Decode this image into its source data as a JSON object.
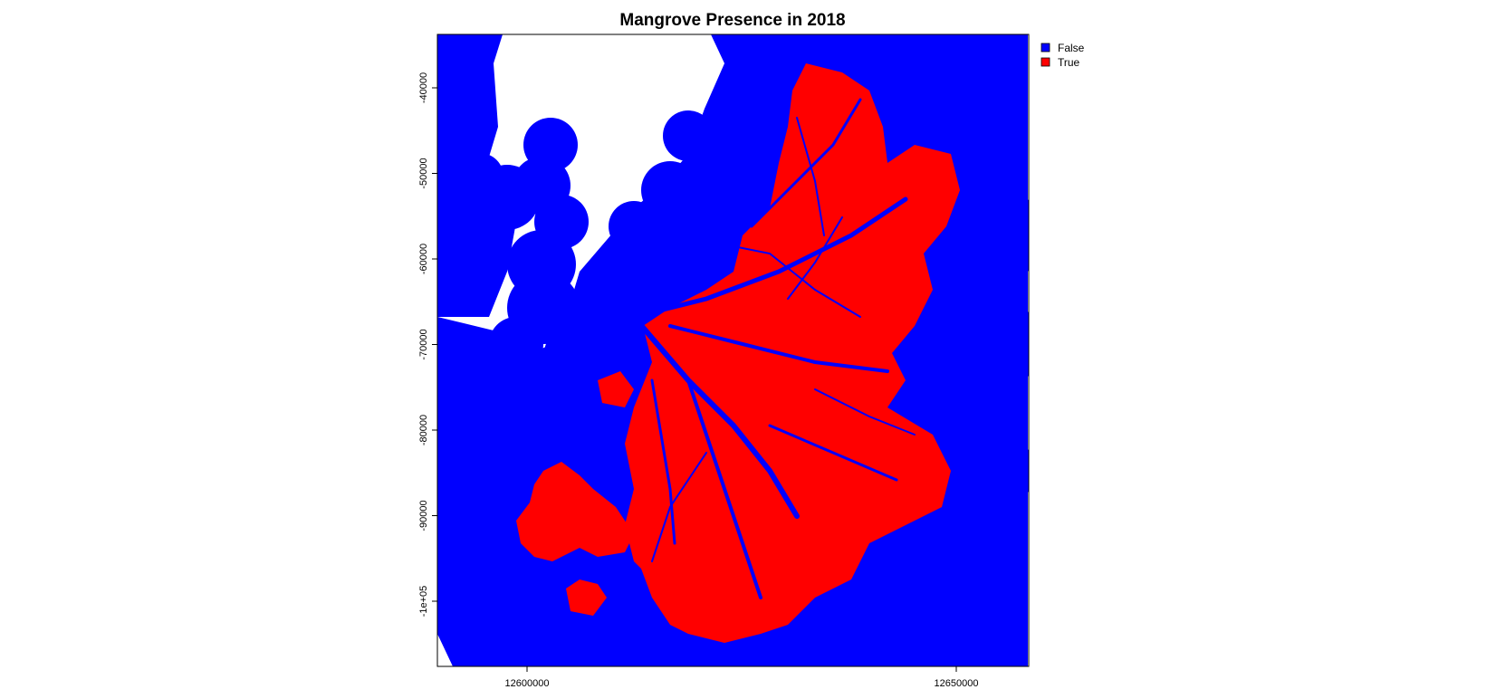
{
  "title": "Mangrove Presence in 2018",
  "map": {
    "x_ticks": [
      {
        "value": 12600000,
        "label": "12600000"
      },
      {
        "value": 12650000,
        "label": "12650000"
      }
    ],
    "y_ticks": [
      {
        "value": -40000,
        "label": "-40000"
      },
      {
        "value": -50000,
        "label": "-50000"
      },
      {
        "value": -60000,
        "label": "-60000"
      },
      {
        "value": -70000,
        "label": "-70000"
      },
      {
        "value": -80000,
        "label": "-80000"
      },
      {
        "value": -90000,
        "label": "-90000"
      },
      {
        "value": -100000,
        "label": "-1e+05"
      }
    ],
    "legend": {
      "placement": "top-right outside",
      "items": [
        {
          "label": "False",
          "color": "#0000ff"
        },
        {
          "label": "True",
          "color": "#ff0000"
        }
      ]
    },
    "colors": {
      "background": "#ffffff",
      "false": "#0000ff",
      "true": "#ff0000"
    }
  }
}
